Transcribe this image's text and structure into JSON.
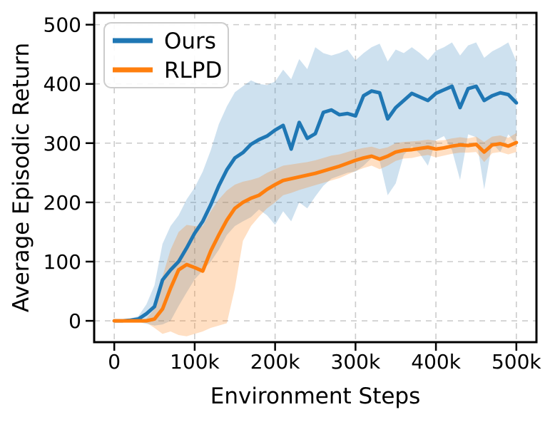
{
  "chart_data": {
    "type": "line",
    "title": "",
    "xlabel": "Environment Steps",
    "ylabel": "Average Episodic Return",
    "xlim": [
      -25000,
      525000
    ],
    "ylim": [
      -36,
      520
    ],
    "grid": {
      "visible": true,
      "style": "dashed",
      "color": "#cccccc"
    },
    "legend": {
      "position": "upper left",
      "entries": [
        "Ours",
        "RLPD"
      ]
    },
    "axis": {
      "spine_color": "#000000",
      "background": "#ffffff"
    },
    "xticks": [
      {
        "value": 0,
        "label": "0"
      },
      {
        "value": 100000,
        "label": "100k"
      },
      {
        "value": 200000,
        "label": "200k"
      },
      {
        "value": 300000,
        "label": "300k"
      },
      {
        "value": 400000,
        "label": "400k"
      },
      {
        "value": 500000,
        "label": "500k"
      }
    ],
    "yticks": [
      {
        "value": 0,
        "label": "0"
      },
      {
        "value": 100,
        "label": "100"
      },
      {
        "value": 200,
        "label": "200"
      },
      {
        "value": 300,
        "label": "300"
      },
      {
        "value": 400,
        "label": "400"
      },
      {
        "value": 500,
        "label": "500"
      }
    ],
    "x": [
      0,
      10000,
      20000,
      30000,
      40000,
      50000,
      60000,
      70000,
      80000,
      90000,
      100000,
      110000,
      120000,
      130000,
      140000,
      150000,
      160000,
      170000,
      180000,
      190000,
      200000,
      210000,
      220000,
      230000,
      240000,
      250000,
      260000,
      270000,
      280000,
      290000,
      300000,
      310000,
      320000,
      330000,
      340000,
      350000,
      360000,
      370000,
      380000,
      390000,
      400000,
      410000,
      420000,
      430000,
      440000,
      450000,
      460000,
      470000,
      480000,
      490000,
      500000
    ],
    "series": [
      {
        "name": "Ours",
        "color": "#1f77b4",
        "line_width": 5,
        "values": [
          0,
          0,
          1,
          3,
          12,
          24,
          69,
          86,
          100,
          123,
          148,
          168,
          196,
          228,
          255,
          275,
          284,
          298,
          306,
          312,
          322,
          330,
          290,
          335,
          308,
          316,
          352,
          356,
          348,
          350,
          346,
          380,
          388,
          385,
          341,
          360,
          372,
          384,
          378,
          372,
          384,
          390,
          396,
          360,
          392,
          396,
          372,
          380,
          385,
          382,
          368
        ],
        "band": {
          "opacity": 0.22,
          "upper": [
            2,
            2,
            4,
            8,
            28,
            60,
            130,
            160,
            178,
            205,
            225,
            252,
            288,
            332,
            362,
            386,
            396,
            406,
            400,
            398,
            404,
            424,
            408,
            442,
            425,
            462,
            452,
            448,
            452,
            458,
            440,
            452,
            462,
            468,
            438,
            458,
            452,
            462,
            452,
            440,
            456,
            462,
            470,
            448,
            465,
            470,
            444,
            455,
            462,
            470,
            438
          ],
          "lower": [
            -2,
            -2,
            -1,
            -2,
            -5,
            -8,
            -6,
            0,
            25,
            48,
            70,
            85,
            100,
            120,
            145,
            160,
            168,
            175,
            188,
            178,
            162,
            185,
            168,
            200,
            190,
            210,
            228,
            240,
            245,
            250,
            252,
            262,
            275,
            270,
            212,
            232,
            280,
            295,
            282,
            262,
            305,
            312,
            288,
            238,
            315,
            310,
            222,
            300,
            285,
            315,
            298
          ]
        }
      },
      {
        "name": "RLPD",
        "color": "#ff7f0e",
        "line_width": 5,
        "values": [
          0,
          0,
          0,
          0,
          0,
          3,
          20,
          55,
          86,
          95,
          90,
          84,
          118,
          145,
          170,
          190,
          200,
          207,
          212,
          222,
          230,
          237,
          240,
          243,
          246,
          249,
          253,
          257,
          261,
          266,
          271,
          275,
          278,
          273,
          278,
          285,
          288,
          289,
          291,
          293,
          290,
          292,
          295,
          297,
          296,
          298,
          285,
          297,
          299,
          295,
          301
        ],
        "band": {
          "opacity": 0.25,
          "upper": [
            1,
            1,
            1,
            1,
            4,
            20,
            75,
            120,
            150,
            162,
            160,
            160,
            185,
            205,
            220,
            230,
            235,
            238,
            242,
            250,
            256,
            262,
            264,
            266,
            268,
            271,
            275,
            279,
            281,
            285,
            289,
            292,
            294,
            290,
            293,
            300,
            302,
            303,
            304,
            306,
            304,
            305,
            308,
            310,
            308,
            311,
            302,
            311,
            313,
            309,
            317
          ],
          "lower": [
            -1,
            -1,
            -1,
            -1,
            -3,
            -12,
            -22,
            -18,
            -24,
            -26,
            -22,
            -18,
            -12,
            -8,
            -4,
            55,
            135,
            160,
            176,
            190,
            200,
            212,
            216,
            221,
            225,
            229,
            233,
            237,
            241,
            247,
            253,
            258,
            262,
            256,
            262,
            270,
            274,
            275,
            278,
            280,
            276,
            279,
            282,
            284,
            284,
            285,
            268,
            283,
            285,
            281,
            285
          ]
        }
      }
    ]
  }
}
